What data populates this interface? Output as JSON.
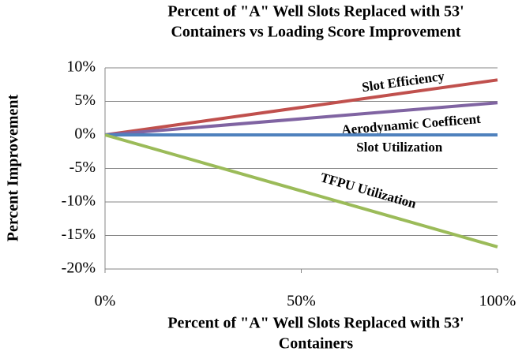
{
  "chart_data": {
    "type": "line",
    "title": [
      "Percent of \"A\" Well Slots Replaced with 53'",
      "Containers vs Loading Score Improvement"
    ],
    "x_label": [
      "Percent of \"A\" Well Slots Replaced with 53'",
      "Containers"
    ],
    "y_label": "Percent Improvement",
    "x": [
      0,
      100
    ],
    "series": [
      {
        "name": "Slot Efficiency",
        "color": "#c0504d",
        "values": [
          0,
          8.2
        ]
      },
      {
        "name": "Aerodynamic Coefficent",
        "color": "#8064a2",
        "values": [
          0,
          4.8
        ]
      },
      {
        "name": "Slot Utilization",
        "color": "#4f81bd",
        "values": [
          0,
          0
        ]
      },
      {
        "name": "TFPU Utilization",
        "color": "#9bbb59",
        "values": [
          0,
          -16.7
        ]
      }
    ],
    "xlim": [
      0,
      100
    ],
    "xticks": [
      {
        "value": 0,
        "label": "0%"
      },
      {
        "value": 50,
        "label": "50%"
      },
      {
        "value": 100,
        "label": "100%"
      }
    ],
    "ylim": [
      -20,
      10
    ],
    "yticks": [
      {
        "value": -20,
        "label": "-20%"
      },
      {
        "value": -15,
        "label": "-15%"
      },
      {
        "value": -10,
        "label": "-10%"
      },
      {
        "value": -5,
        "label": "-5%"
      },
      {
        "value": 0,
        "label": "0%"
      },
      {
        "value": 5,
        "label": "5%"
      },
      {
        "value": 10,
        "label": "10%"
      }
    ],
    "grid": true
  }
}
